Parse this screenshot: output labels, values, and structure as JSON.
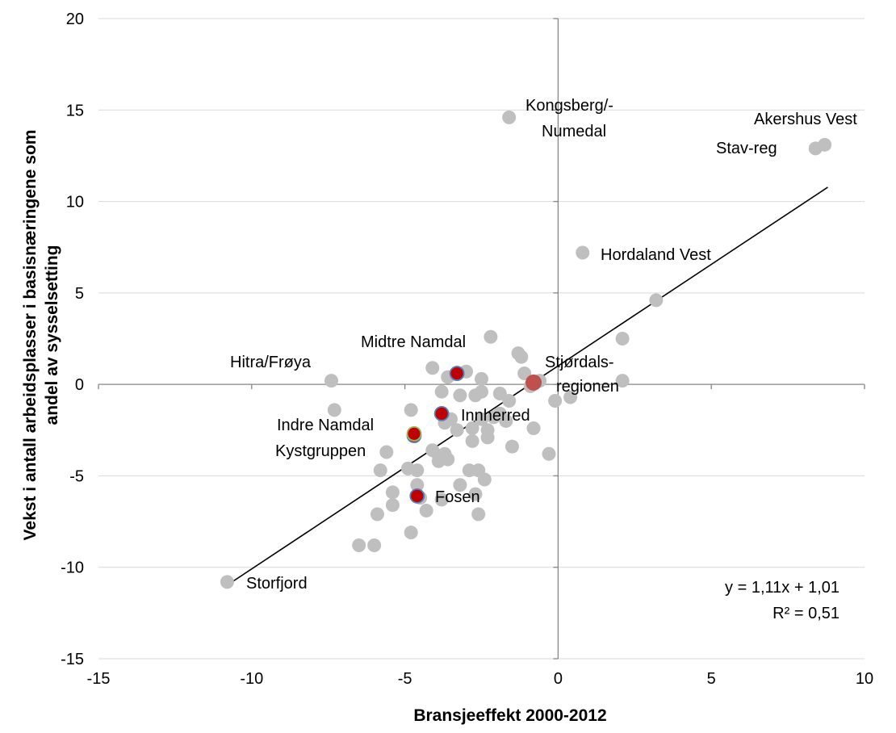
{
  "chart_data": {
    "type": "scatter",
    "title": "",
    "xlabel": "Bransjeeffekt 2000-2012",
    "ylabel_lines": [
      "Vekst i antall arbeidsplasser i basisnæringene som",
      "andel av sysselsetting"
    ],
    "xlim": [
      -15,
      10
    ],
    "ylim": [
      -15,
      20
    ],
    "x_ticks": [
      -15,
      -10,
      -5,
      0,
      5,
      10
    ],
    "y_ticks": [
      -15,
      -10,
      -5,
      0,
      5,
      10,
      15,
      20
    ],
    "grid": "horizontal",
    "colors": {
      "background_points": "#bfbfbf",
      "highlight_points": "#c00000",
      "highlight_border": "#4f81bd",
      "highlight_border_alt": "#9bbb59",
      "stjordal_point": "#c0504d",
      "trendline": "#000000",
      "gridline": "#d9d9d9",
      "axis": "#868686"
    },
    "trendline": {
      "slope": 1.11,
      "intercept": 1.01,
      "x_range": [
        -10.8,
        8.8
      ]
    },
    "equation": {
      "line1": "y = 1,11x + 1,01",
      "line2": "R² = 0,51"
    },
    "background_points": [
      [
        -10.8,
        -10.8
      ],
      [
        -7.4,
        0.2
      ],
      [
        -7.3,
        -1.4
      ],
      [
        -6.5,
        -8.8
      ],
      [
        -6.0,
        -8.8
      ],
      [
        -5.9,
        -7.1
      ],
      [
        -5.8,
        -4.7
      ],
      [
        -5.6,
        -3.7
      ],
      [
        -5.4,
        -5.9
      ],
      [
        -5.4,
        -6.6
      ],
      [
        -4.9,
        -4.6
      ],
      [
        -4.8,
        -1.4
      ],
      [
        -4.8,
        -8.1
      ],
      [
        -4.6,
        -4.7
      ],
      [
        -4.6,
        -5.5
      ],
      [
        -4.5,
        -6.2
      ],
      [
        -4.3,
        -6.9
      ],
      [
        -4.1,
        -3.6
      ],
      [
        -4.1,
        0.9
      ],
      [
        -3.9,
        -4.2
      ],
      [
        -3.9,
        -3.9
      ],
      [
        -3.8,
        -6.3
      ],
      [
        -3.8,
        -0.4
      ],
      [
        -3.7,
        -2.1
      ],
      [
        -3.7,
        -3.8
      ],
      [
        -3.6,
        -4.1
      ],
      [
        -3.6,
        0.4
      ],
      [
        -3.5,
        -1.9
      ],
      [
        -3.3,
        -2.5
      ],
      [
        -3.2,
        -0.6
      ],
      [
        -3.2,
        -5.5
      ],
      [
        -3.0,
        0.7
      ],
      [
        -2.9,
        -4.7
      ],
      [
        -2.8,
        -2.4
      ],
      [
        -2.8,
        -3.1
      ],
      [
        -2.7,
        -0.6
      ],
      [
        -2.7,
        -6.0
      ],
      [
        -2.6,
        -4.7
      ],
      [
        -2.6,
        -7.1
      ],
      [
        -2.5,
        -0.4
      ],
      [
        -2.5,
        0.3
      ],
      [
        -2.5,
        -1.9
      ],
      [
        -2.4,
        -5.2
      ],
      [
        -2.3,
        -2.9
      ],
      [
        -2.3,
        -2.5
      ],
      [
        -2.2,
        2.6
      ],
      [
        -2.1,
        -1.8
      ],
      [
        -1.9,
        -1.6
      ],
      [
        -1.9,
        -0.5
      ],
      [
        -1.7,
        -2.0
      ],
      [
        -1.6,
        -0.9
      ],
      [
        -1.5,
        -3.4
      ],
      [
        -1.3,
        1.7
      ],
      [
        -1.2,
        1.5
      ],
      [
        -1.1,
        0.6
      ],
      [
        -0.9,
        -0.1
      ],
      [
        -0.8,
        -2.4
      ],
      [
        -0.6,
        0.2
      ],
      [
        -0.3,
        -3.8
      ],
      [
        -0.1,
        -0.9
      ],
      [
        0.4,
        -0.7
      ],
      [
        0.8,
        7.2
      ],
      [
        2.1,
        2.5
      ],
      [
        2.1,
        0.2
      ],
      [
        3.2,
        4.6
      ],
      [
        -1.6,
        14.6
      ],
      [
        8.4,
        12.9
      ],
      [
        8.7,
        13.1
      ]
    ],
    "highlight_points": [
      {
        "x": -3.3,
        "y": 0.6,
        "border": "blue"
      },
      {
        "x": -3.8,
        "y": -1.6,
        "border": "blue"
      },
      {
        "x": -4.7,
        "y": -2.8,
        "border": "blue"
      },
      {
        "x": -4.7,
        "y": -2.7,
        "border": "green"
      },
      {
        "x": -4.6,
        "y": -6.1,
        "border": "blue"
      }
    ],
    "stjordal_point": {
      "x": -0.8,
      "y": 0.1
    },
    "annotations": [
      {
        "text": "Kongsberg/-",
        "anchor": "start",
        "dx": 651,
        "dy": 137
      },
      {
        "text": "Numedal",
        "anchor": "start",
        "dx": 671,
        "dy": 169
      },
      {
        "text": "Akershus Vest",
        "anchor": "start",
        "dx": 934,
        "dy": 154
      },
      {
        "text": "Stav-reg",
        "anchor": "start",
        "dx": 887,
        "dy": 190
      },
      {
        "text": "Hordaland Vest",
        "anchor": "start",
        "dx": 744,
        "dy": 322
      },
      {
        "text": "Midtre Namdal",
        "anchor": "start",
        "dx": 447,
        "dy": 430
      },
      {
        "text": "Hitra/Frøya",
        "anchor": "start",
        "dx": 285,
        "dy": 455
      },
      {
        "text": "Stjørdals-",
        "anchor": "start",
        "dx": 675,
        "dy": 455
      },
      {
        "text": "regionen",
        "anchor": "start",
        "dx": 689,
        "dy": 485
      },
      {
        "text": "Innherred",
        "anchor": "start",
        "dx": 571,
        "dy": 521
      },
      {
        "text": "Indre Namdal",
        "anchor": "start",
        "dx": 343,
        "dy": 533
      },
      {
        "text": "Kystgruppen",
        "anchor": "start",
        "dx": 341,
        "dy": 565
      },
      {
        "text": "Fosen",
        "anchor": "start",
        "dx": 539,
        "dy": 622
      },
      {
        "text": "Storfjord",
        "anchor": "start",
        "dx": 305,
        "dy": 729
      }
    ]
  }
}
